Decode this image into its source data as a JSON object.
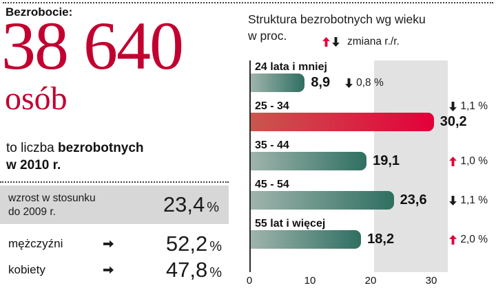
{
  "left": {
    "header": "Bezrobocie:",
    "big_number": "38 640",
    "big_unit": "osób",
    "desc_regular": "to liczba ",
    "desc_bold": "bezrobotnych",
    "desc_line2": "w 2010 r.",
    "growth": {
      "label_line1": "wzrost w stosunku",
      "label_line2": "do 2009 r.",
      "value": "23,4",
      "percent": "%"
    },
    "stats": [
      {
        "label": "mężczyźni",
        "value": "52,2",
        "percent": "%"
      },
      {
        "label": "kobiety",
        "value": "47,8",
        "percent": "%"
      }
    ]
  },
  "right": {
    "title_line1": "Struktura bezrobotnych wg wieku",
    "title_line2": "w proc.",
    "legend_label": "zmiana r./r."
  },
  "chart_data": {
    "type": "bar",
    "orientation": "horizontal",
    "title": "Struktura bezrobotnych wg wieku w proc.",
    "categories": [
      "24 lata i mniej",
      "25 - 34",
      "35 - 44",
      "45 - 54",
      "55 lat i więcej"
    ],
    "values": [
      8.9,
      30.2,
      19.1,
      23.6,
      18.2
    ],
    "value_labels": [
      "8,9",
      "30,2",
      "19,1",
      "23,6",
      "18,2"
    ],
    "changes": [
      {
        "direction": "down",
        "label": "0,8 %"
      },
      {
        "direction": "down",
        "label": "1,1 %"
      },
      {
        "direction": "up",
        "label": "1,0 %"
      },
      {
        "direction": "down",
        "label": "1,1 %"
      },
      {
        "direction": "up",
        "label": "2,0 %"
      }
    ],
    "change_placement": [
      "inline",
      "label-line",
      "right",
      "right",
      "right"
    ],
    "highlight_index": 1,
    "xlim": [
      0,
      30
    ],
    "xticks": [
      "0",
      "10",
      "20",
      "30"
    ],
    "legend": "zmiana r./r.",
    "legend_position": "top-right",
    "grid": false,
    "colors": {
      "bar_gradient": [
        "#9fb4ac",
        "#2f6f61"
      ],
      "highlight_gradient": [
        "#c9574e",
        "#e30039"
      ],
      "accent_red": "#c20030",
      "arrow_up": "#e30039",
      "arrow_down": "#1a1a1a",
      "gray_band": "#e2e2e2",
      "gray_box": "#d7d7d7"
    }
  }
}
